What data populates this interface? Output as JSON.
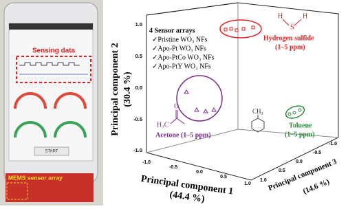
{
  "phone": {
    "sensing_label": "Sensing data",
    "button": "START",
    "board_label": "MEMS sensor array"
  },
  "legend": {
    "title": "4 Sensor arrays",
    "items": [
      "✓Pristine WO₃ NFs",
      "✓Apo-Pt WO₃ NFs",
      "✓Apo-PtCo WO₃ NFs",
      "✓Apo-PtY WO₃ NFs"
    ]
  },
  "axes": {
    "pc2_label": "Principal component 2",
    "pc2_pct": "(30.4 %)",
    "pc1_label": "Principal component 1",
    "pc1_pct": "(44.4 %)",
    "pc3_label": "Principal component 3",
    "pc3_pct": "(14.6 %)",
    "pc2_ticks": [
      "1.0",
      "0.5",
      "0.0",
      "-0.5",
      "-1.0"
    ],
    "pc1_ticks": [
      "-1.0",
      "-0.5",
      "0.0",
      "0.5",
      "1.0"
    ],
    "pc3_ticks": [
      "1.0",
      "0.5",
      "0.0",
      "-0.5",
      "-1.0"
    ]
  },
  "groups": {
    "h2s": {
      "name": "Hydrogen sulfide",
      "range": "(1–5 ppm)",
      "atoms": [
        "H",
        "S",
        "H"
      ]
    },
    "toluene": {
      "name": "Toluene",
      "range": "(1–5 ppm)",
      "atoms": [
        "CH₃"
      ]
    },
    "acetone": {
      "name": "Acetone (1–5 ppm)",
      "atoms": [
        "H₃C",
        "O"
      ]
    }
  }
}
